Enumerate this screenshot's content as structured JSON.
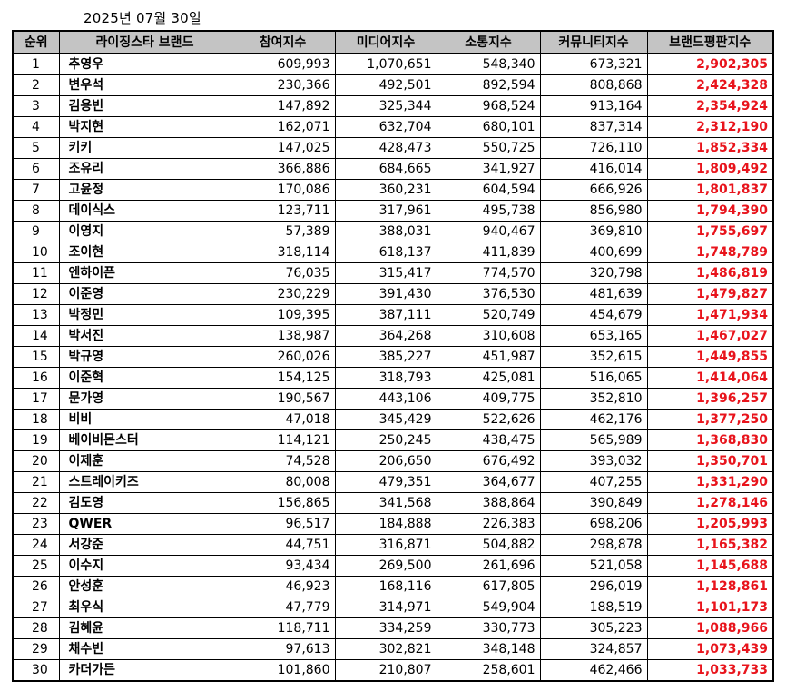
{
  "date": "2025년 07월 30일",
  "columns": [
    "순위",
    "라이징스타 브랜드",
    "참여지수",
    "미디어지수",
    "소통지수",
    "커뮤니티지수",
    "브랜드평판지수"
  ],
  "rows": [
    [
      "1",
      "추영우",
      "609,993",
      "1,070,651",
      "548,340",
      "673,321",
      "2,902,305"
    ],
    [
      "2",
      "변우석",
      "230,366",
      "492,501",
      "892,594",
      "808,868",
      "2,424,328"
    ],
    [
      "3",
      "김용빈",
      "147,892",
      "325,344",
      "968,524",
      "913,164",
      "2,354,924"
    ],
    [
      "4",
      "박지현",
      "162,071",
      "632,704",
      "680,101",
      "837,314",
      "2,312,190"
    ],
    [
      "5",
      "키키",
      "147,025",
      "428,473",
      "550,725",
      "726,110",
      "1,852,334"
    ],
    [
      "6",
      "조유리",
      "366,886",
      "684,665",
      "341,927",
      "416,014",
      "1,809,492"
    ],
    [
      "7",
      "고윤정",
      "170,086",
      "360,231",
      "604,594",
      "666,926",
      "1,801,837"
    ],
    [
      "8",
      "데이식스",
      "123,711",
      "317,961",
      "495,738",
      "856,980",
      "1,794,390"
    ],
    [
      "9",
      "이영지",
      "57,389",
      "388,031",
      "940,467",
      "369,810",
      "1,755,697"
    ],
    [
      "10",
      "조이현",
      "318,114",
      "618,137",
      "411,839",
      "400,699",
      "1,748,789"
    ],
    [
      "11",
      "엔하이픈",
      "76,035",
      "315,417",
      "774,570",
      "320,798",
      "1,486,819"
    ],
    [
      "12",
      "이준영",
      "230,229",
      "391,430",
      "376,530",
      "481,639",
      "1,479,827"
    ],
    [
      "13",
      "박정민",
      "109,395",
      "387,111",
      "520,749",
      "454,679",
      "1,471,934"
    ],
    [
      "14",
      "박서진",
      "138,987",
      "364,268",
      "310,608",
      "653,165",
      "1,467,027"
    ],
    [
      "15",
      "박규영",
      "260,026",
      "385,227",
      "451,987",
      "352,615",
      "1,449,855"
    ],
    [
      "16",
      "이준혁",
      "154,125",
      "318,793",
      "425,081",
      "516,065",
      "1,414,064"
    ],
    [
      "17",
      "문가영",
      "190,567",
      "443,106",
      "409,775",
      "352,810",
      "1,396,257"
    ],
    [
      "18",
      "비비",
      "47,018",
      "345,429",
      "522,626",
      "462,176",
      "1,377,250"
    ],
    [
      "19",
      "베이비몬스터",
      "114,121",
      "250,245",
      "438,475",
      "565,989",
      "1,368,830"
    ],
    [
      "20",
      "이제훈",
      "74,528",
      "206,650",
      "676,492",
      "393,032",
      "1,350,701"
    ],
    [
      "21",
      "스트레이키즈",
      "80,008",
      "479,351",
      "364,677",
      "407,255",
      "1,331,290"
    ],
    [
      "22",
      "김도영",
      "156,865",
      "341,568",
      "388,864",
      "390,849",
      "1,278,146"
    ],
    [
      "23",
      "QWER",
      "96,517",
      "184,888",
      "226,383",
      "698,206",
      "1,205,993"
    ],
    [
      "24",
      "서강준",
      "44,751",
      "316,871",
      "504,882",
      "298,878",
      "1,165,382"
    ],
    [
      "25",
      "이수지",
      "93,434",
      "269,500",
      "261,696",
      "521,058",
      "1,145,688"
    ],
    [
      "26",
      "안성훈",
      "46,923",
      "168,116",
      "617,805",
      "296,019",
      "1,128,861"
    ],
    [
      "27",
      "최우식",
      "47,779",
      "314,971",
      "549,904",
      "188,519",
      "1,101,173"
    ],
    [
      "28",
      "김혜윤",
      "118,711",
      "334,259",
      "330,773",
      "305,223",
      "1,088,966"
    ],
    [
      "29",
      "채수빈",
      "97,613",
      "302,821",
      "348,148",
      "324,857",
      "1,073,439"
    ],
    [
      "30",
      "카더가든",
      "101,860",
      "210,807",
      "258,601",
      "462,466",
      "1,033,733"
    ]
  ],
  "colors": {
    "header_bg": "#c4c4c4",
    "score_text": "#e8141c",
    "border": "#000000"
  }
}
